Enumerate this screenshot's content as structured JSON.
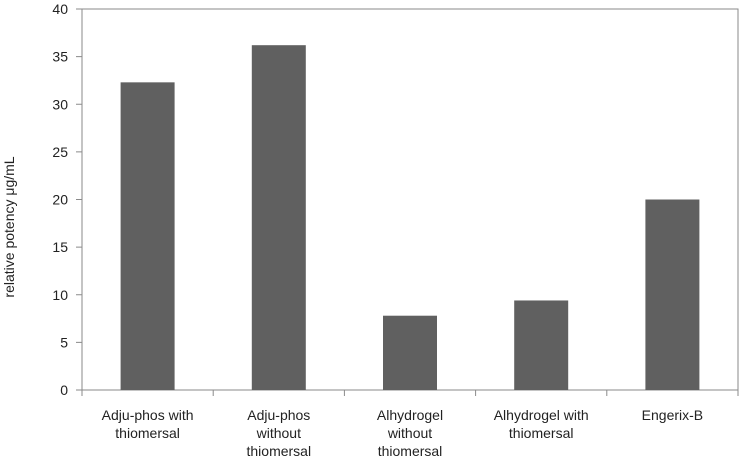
{
  "chart_data": {
    "type": "bar",
    "title": "",
    "xlabel": "",
    "ylabel": "relative potency μg/mL",
    "ylim": [
      0,
      40
    ],
    "yticks": [
      0,
      5,
      10,
      15,
      20,
      25,
      30,
      35,
      40
    ],
    "grid": false,
    "legend": "none",
    "bar_color": "#606060",
    "categories": [
      [
        "Adju-phos with",
        "thiomersal"
      ],
      [
        "Adju-phos",
        "without",
        "thiomersal"
      ],
      [
        "Alhydrogel",
        "without",
        "thiomersal"
      ],
      [
        "Alhydrogel with",
        "thiomersal"
      ],
      [
        "Engerix-B"
      ]
    ],
    "values": [
      32.3,
      36.2,
      7.8,
      9.4,
      20.0
    ]
  }
}
